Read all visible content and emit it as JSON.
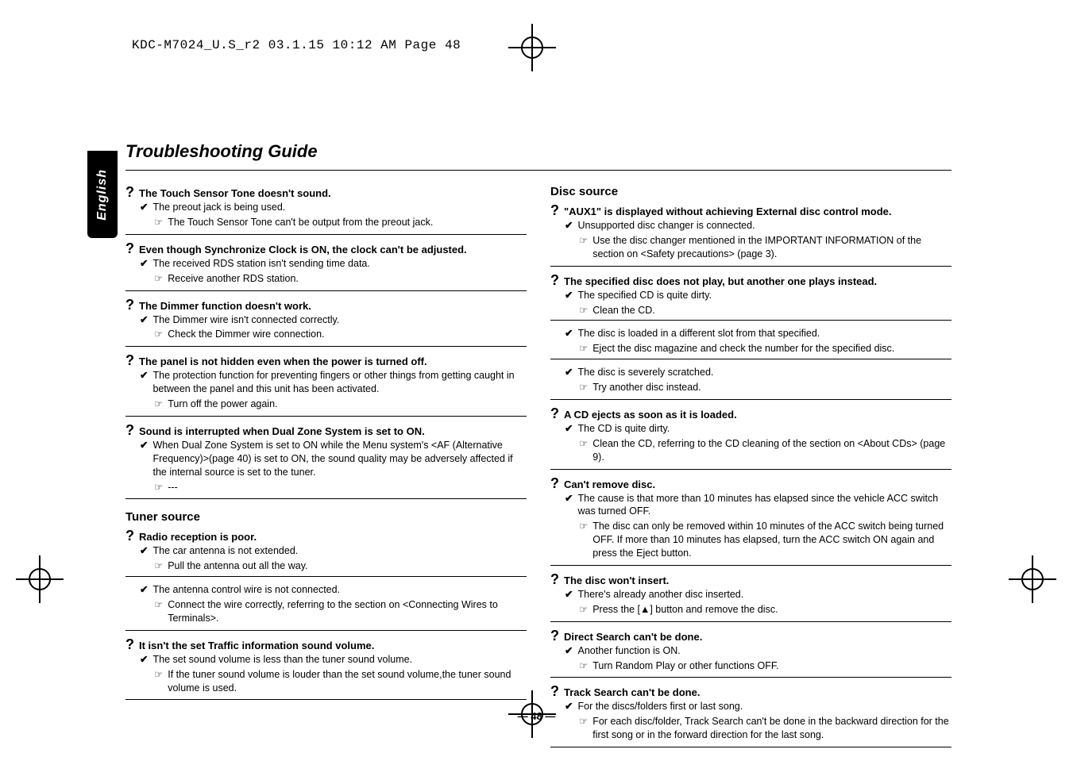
{
  "header_line": "KDC-M7024_U.S_r2  03.1.15  10:12 AM  Page 48",
  "title": "Troubleshooting Guide",
  "tab_label": "English",
  "page_number": "— 48 —",
  "left": {
    "items": [
      {
        "q": "The Touch Sensor Tone doesn't sound.",
        "causes": [
          {
            "c": "The preout jack is being used.",
            "r": "The Touch Sensor Tone can't be output from the preout jack."
          }
        ]
      },
      {
        "q": "Even though Synchronize Clock is ON, the clock can't be adjusted.",
        "causes": [
          {
            "c": "The received RDS station isn't sending time data.",
            "r": "Receive another RDS station."
          }
        ]
      },
      {
        "q": "The Dimmer function doesn't work.",
        "causes": [
          {
            "c": "The Dimmer wire isn't connected correctly.",
            "r": "Check the Dimmer wire connection."
          }
        ]
      },
      {
        "q": "The panel is not hidden even when the power is turned off.",
        "causes": [
          {
            "c": "The protection function for preventing fingers or other things from getting caught in between the panel and this unit has been activated.",
            "r": "Turn off the power again."
          }
        ]
      },
      {
        "q": "Sound is interrupted when Dual Zone System is set to ON.",
        "causes": [
          {
            "c": "When Dual Zone System is set to ON while the Menu system's <AF (Alternative Frequency)>(page 40) is set to ON, the sound quality may be adversely affected if the internal source is set to the tuner.",
            "r": "---"
          }
        ]
      }
    ],
    "section2_title": "Tuner source",
    "section2_items": [
      {
        "q": "Radio reception is poor.",
        "causes": [
          {
            "c": "The car antenna is not extended.",
            "r": "Pull the antenna out all the way."
          },
          {
            "c": "The antenna control wire is not connected.",
            "r": "Connect the wire correctly, referring to the section on <Connecting Wires to Terminals>."
          }
        ]
      },
      {
        "q": "It isn't the set Traffic information sound volume.",
        "causes": [
          {
            "c": "The set sound volume is less than the tuner sound volume.",
            "r": "If the tuner sound volume is louder than the set sound volume,the tuner sound volume is used."
          }
        ]
      }
    ]
  },
  "right": {
    "section_title": "Disc source",
    "items": [
      {
        "q": "\"AUX1\" is displayed without achieving External disc control mode.",
        "causes": [
          {
            "c": "Unsupported disc changer is connected.",
            "r": "Use the disc changer mentioned in the IMPORTANT INFORMATION of the section on <Safety precautions> (page 3)."
          }
        ]
      },
      {
        "q": "The specified disc does not play, but another one plays instead.",
        "causes": [
          {
            "c": "The specified CD is quite dirty.",
            "r": "Clean the CD."
          },
          {
            "c": "The disc is loaded in a different slot from that specified.",
            "r": "Eject the disc magazine and check the number for the specified disc."
          },
          {
            "c": "The disc is severely scratched.",
            "r": "Try another disc instead."
          }
        ]
      },
      {
        "q": "A CD ejects as soon as it is loaded.",
        "causes": [
          {
            "c": "The CD is quite dirty.",
            "r": "Clean the CD, referring to the CD cleaning of the section on <About CDs> (page 9)."
          }
        ]
      },
      {
        "q": "Can't remove disc.",
        "causes": [
          {
            "c": "The cause is that more than 10 minutes has elapsed since the vehicle ACC switch was turned OFF.",
            "r": "The disc can only be removed within 10 minutes of the ACC switch being turned OFF. If more than 10 minutes has elapsed, turn the ACC switch ON again and press the Eject button."
          }
        ]
      },
      {
        "q": "The disc won't insert.",
        "causes": [
          {
            "c": "There's already another disc inserted.",
            "r": "Press the [▲] button and remove the disc."
          }
        ]
      },
      {
        "q": "Direct Search can't be done.",
        "causes": [
          {
            "c": "Another function is ON.",
            "r": "Turn Random Play or other functions OFF."
          }
        ]
      },
      {
        "q": "Track Search can't be done.",
        "causes": [
          {
            "c": "For the discs/folders first or last song.",
            "r": "For each disc/folder, Track Search can't be done in the backward direction for the first song or in the forward direction for the last song."
          }
        ]
      }
    ]
  }
}
